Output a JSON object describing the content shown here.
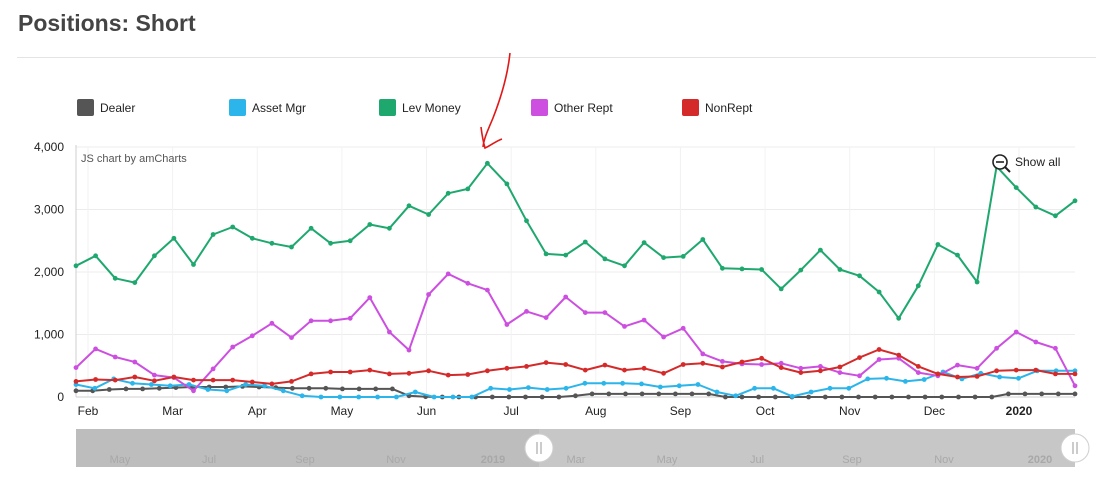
{
  "page": {
    "title": "Positions: Short"
  },
  "chart_data": {
    "type": "line",
    "credit": "JS chart by amCharts",
    "show_all_label": "Show all",
    "ylim": [
      0,
      4000
    ],
    "y_ticks": [
      "0",
      "1,000",
      "2,000",
      "3,000",
      "4,000"
    ],
    "x_tick_labels": [
      "Feb",
      "Mar",
      "Apr",
      "May",
      "Jun",
      "Jul",
      "Aug",
      "Sep",
      "Oct",
      "Nov",
      "Dec",
      "2020"
    ],
    "scrollbar_labels": [
      "May",
      "Jul",
      "Sep",
      "Nov",
      "2019",
      "Mar",
      "May",
      "Jul",
      "Sep",
      "Nov",
      "2020"
    ],
    "grid": true,
    "legend_position": "top",
    "annotation": "red hand-drawn arrow pointing to the Lev Money peak",
    "series": [
      {
        "name": "Dealer",
        "color": "#555555",
        "values": [
          100,
          100,
          120,
          130,
          130,
          140,
          150,
          160,
          160,
          160,
          170,
          160,
          150,
          140,
          140,
          140,
          130,
          130,
          130,
          130,
          20,
          5,
          0,
          0,
          0,
          0,
          0,
          0,
          0,
          0,
          20,
          50,
          50,
          50,
          50,
          50,
          50,
          50,
          50,
          0,
          0,
          0,
          0,
          0,
          0,
          0,
          0,
          0,
          0,
          0,
          0,
          0,
          0,
          0,
          0,
          0,
          50,
          50,
          50,
          50,
          50
        ]
      },
      {
        "name": "Asset Mgr",
        "color": "#2bb5ea",
        "values": [
          200,
          140,
          290,
          220,
          200,
          180,
          200,
          120,
          100,
          200,
          180,
          100,
          20,
          0,
          0,
          0,
          0,
          0,
          80,
          0,
          0,
          0,
          140,
          120,
          150,
          120,
          140,
          220,
          220,
          220,
          210,
          160,
          180,
          200,
          80,
          20,
          140,
          140,
          10,
          80,
          140,
          140,
          290,
          300,
          250,
          280,
          400,
          290,
          380,
          320,
          300,
          420,
          420,
          420
        ]
      },
      {
        "name": "Lev Money",
        "color": "#1ea86e",
        "values": [
          2100,
          2260,
          1900,
          1830,
          2260,
          2540,
          2120,
          2600,
          2720,
          2540,
          2460,
          2400,
          2700,
          2460,
          2500,
          2760,
          2700,
          3060,
          2920,
          3260,
          3330,
          3740,
          3410,
          2820,
          2290,
          2270,
          2480,
          2210,
          2100,
          2470,
          2230,
          2250,
          2520,
          2060,
          2050,
          2040,
          1730,
          2030,
          2350,
          2040,
          1940,
          1680,
          1260,
          1780,
          2440,
          2270,
          1840,
          3690,
          3350,
          3040,
          2900,
          3140
        ]
      },
      {
        "name": "Other Rept",
        "color": "#cc4fe0",
        "values": [
          470,
          770,
          640,
          560,
          350,
          310,
          100,
          450,
          800,
          980,
          1180,
          950,
          1220,
          1220,
          1260,
          1590,
          1040,
          750,
          1640,
          1970,
          1820,
          1710,
          1160,
          1370,
          1270,
          1600,
          1350,
          1350,
          1130,
          1230,
          960,
          1100,
          690,
          570,
          530,
          520,
          540,
          460,
          490,
          390,
          340,
          600,
          620,
          390,
          340,
          510,
          460,
          780,
          1040,
          880,
          780,
          180
        ]
      },
      {
        "name": "NonRept",
        "color": "#d42a2a",
        "values": [
          250,
          280,
          270,
          320,
          260,
          320,
          270,
          270,
          270,
          240,
          210,
          250,
          370,
          400,
          400,
          430,
          370,
          380,
          420,
          350,
          360,
          420,
          460,
          490,
          550,
          520,
          430,
          510,
          430,
          460,
          380,
          520,
          540,
          480,
          560,
          620,
          470,
          390,
          420,
          480,
          630,
          760,
          670,
          490,
          370,
          320,
          330,
          420,
          430,
          430,
          370,
          370
        ]
      }
    ]
  },
  "legend": [
    {
      "label": "Dealer",
      "color": "#555555"
    },
    {
      "label": "Asset Mgr",
      "color": "#2bb5ea"
    },
    {
      "label": "Lev Money",
      "color": "#1ea86e"
    },
    {
      "label": "Other Rept",
      "color": "#cc4fe0"
    },
    {
      "label": "NonRept",
      "color": "#d42a2a"
    }
  ]
}
